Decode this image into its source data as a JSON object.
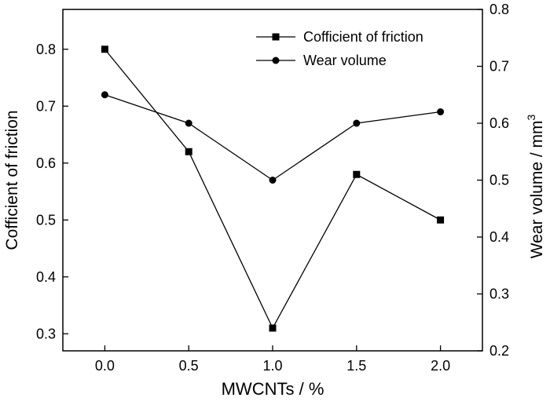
{
  "chart_data": {
    "type": "line",
    "x": [
      0.0,
      0.5,
      1.0,
      1.5,
      2.0
    ],
    "xticks": [
      "0.0",
      "0.5",
      "1.0",
      "1.5",
      "2.0"
    ],
    "xlabel": "MWCNTs / %",
    "ylabel_left": "Cofficient of friction",
    "ylabel_right_base": "Wear volume / mm",
    "ylabel_right_sup": "3",
    "ylim_left": [
      0.27,
      0.87
    ],
    "ylim_right": [
      0.2,
      0.8
    ],
    "yticks_left": [
      "0.3",
      "0.4",
      "0.5",
      "0.6",
      "0.7",
      "0.8"
    ],
    "yticks_right": [
      "0.2",
      "0.3",
      "0.4",
      "0.5",
      "0.6",
      "0.7",
      "0.8"
    ],
    "grid": false,
    "legend_position": "top-right",
    "series": [
      {
        "name": "Cofficient of friction",
        "axis": "left",
        "marker": "square",
        "values": [
          0.8,
          0.62,
          0.31,
          0.58,
          0.5
        ]
      },
      {
        "name": "Wear volume",
        "axis": "right",
        "marker": "circle",
        "values": [
          0.65,
          0.6,
          0.5,
          0.6,
          0.62
        ]
      }
    ]
  }
}
